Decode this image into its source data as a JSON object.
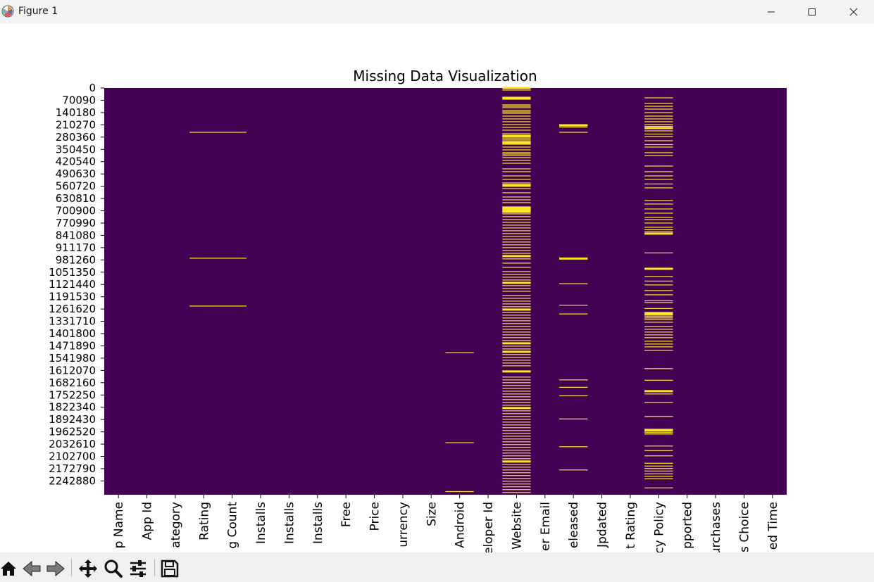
{
  "window": {
    "title": "Figure 1",
    "icons": [
      "matplotlib-logo-icon",
      "minimize-icon",
      "maximize-icon",
      "close-icon"
    ]
  },
  "toolbar": {
    "buttons": [
      "home-icon",
      "back-icon",
      "forward-icon",
      "pan-icon",
      "zoom-icon",
      "configure-subplots-icon",
      "save-icon"
    ]
  },
  "chart_data": {
    "type": "heatmap",
    "title": "Missing Data Visualization",
    "xlabel": "",
    "ylabel": "",
    "colormap": [
      "#440154",
      "#fde725"
    ],
    "x_tick_labels": [
      "p Name",
      "App Id",
      "ategory",
      "Rating",
      "g Count",
      "Installs",
      "Installs",
      "Installs",
      "Free",
      "Price",
      "urrency",
      "Size",
      "Android",
      "eloper Id",
      "Website",
      "er Email",
      "eleased",
      "Jpdated",
      "t Rating",
      "cy Policy",
      "pported",
      "urchases",
      "s Choice",
      "ed Time"
    ],
    "y_tick_labels": [
      "0",
      "70090",
      "140180",
      "210270",
      "280360",
      "350450",
      "420540",
      "490630",
      "560720",
      "630810",
      "700900",
      "770990",
      "841080",
      "911170",
      "981260",
      "1051350",
      "1121440",
      "1191530",
      "1261620",
      "1331710",
      "1401800",
      "1471890",
      "1541980",
      "1612070",
      "1682160",
      "1752250",
      "1822340",
      "1892430",
      "1962520",
      "2032610",
      "2102700",
      "2172790",
      "2242880"
    ],
    "row_range": [
      0,
      2312970
    ],
    "missing_rows": [
      {
        "column": 3,
        "rows": [
          252000,
          968000,
          1240000
        ]
      },
      {
        "column": 4,
        "rows": [
          252000,
          968000,
          1240000
        ]
      },
      {
        "column": 12,
        "rows": [
          1505000,
          2017000,
          2295000
        ]
      },
      {
        "column": 16,
        "rows": [
          212000,
          222000,
          252000,
          970000,
          1113000,
          1235000,
          1285000,
          1660000,
          1702000,
          1750000,
          1882000,
          2040000,
          2172000
        ]
      },
      {
        "column": 19,
        "rows": [
          56000,
          88000,
          104000,
          120000,
          140000,
          160000,
          176000,
          192000,
          208000,
          218000,
          228000,
          244000,
          262000,
          276000,
          300000,
          322000,
          336000,
          368000,
          384000,
          444000,
          476000,
          500000,
          520000,
          546000,
          568000,
          640000,
          660000,
          688000,
          712000,
          736000,
          748000,
          768000,
          792000,
          806000,
          818000,
          828000,
          938000,
          1028000,
          1072000,
          1098000,
          1120000,
          1152000,
          1176000,
          1210000,
          1220000,
          1254000,
          1276000,
          1284000,
          1292000,
          1300000,
          1308000,
          1316000,
          1332000,
          1356000,
          1372000,
          1388000,
          1404000,
          1420000,
          1440000,
          1456000,
          1472000,
          1492000,
          1596000,
          1662000,
          1724000,
          1740000,
          1788000,
          1868000,
          1944000,
          1952000,
          1960000,
          1968000,
          2036000,
          2062000,
          2092000,
          2134000,
          2150000,
          2164000,
          2178000,
          2194000,
          2208000,
          2222000,
          2274000
        ]
      },
      {
        "column": 14,
        "rows": [
          0,
          12000,
          56000,
          64000,
          96000,
          104000,
          112000,
          128000,
          136000,
          144000,
          160000,
          176000,
          192000,
          208000,
          224000,
          240000,
          260000,
          272000,
          280000,
          288000,
          296000,
          304000,
          312000,
          320000,
          336000,
          352000,
          368000,
          376000,
          384000,
          396000,
          412000,
          428000,
          460000,
          476000,
          500000,
          520000,
          540000,
          548000,
          556000,
          572000,
          596000,
          620000,
          636000,
          652000,
          676000,
          684000,
          692000,
          700000,
          708000,
          716000,
          732000,
          748000,
          764000,
          780000,
          796000,
          812000,
          828000,
          844000,
          860000,
          876000,
          892000,
          908000,
          924000,
          940000,
          956000,
          972000,
          996000,
          1020000,
          1044000,
          1060000,
          1076000,
          1092000,
          1108000,
          1124000,
          1140000,
          1156000,
          1180000,
          1196000,
          1212000,
          1228000,
          1244000,
          1260000,
          1276000,
          1292000,
          1308000,
          1324000,
          1340000,
          1356000,
          1372000,
          1388000,
          1404000,
          1420000,
          1436000,
          1452000,
          1468000,
          1484000,
          1500000,
          1516000,
          1532000,
          1548000,
          1564000,
          1580000,
          1612000,
          1644000,
          1660000,
          1676000,
          1692000,
          1708000,
          1724000,
          1740000,
          1756000,
          1772000,
          1788000,
          1804000,
          1820000,
          1836000,
          1852000,
          1868000,
          1884000,
          1900000,
          1916000,
          1932000,
          1948000,
          1964000,
          1980000,
          1996000,
          2012000,
          2028000,
          2044000,
          2060000,
          2076000,
          2092000,
          2108000,
          2124000,
          2140000,
          2156000,
          2172000,
          2188000,
          2204000,
          2220000,
          2236000,
          2252000,
          2268000,
          2284000,
          2300000
        ]
      }
    ],
    "bold_rows": [
      {
        "column": 14,
        "rows": [
          0,
          56000,
          272000,
          312000,
          556000,
          684000,
          700000,
          956000,
          1108000,
          1260000,
          1452000,
          1500000,
          1612000,
          1820000,
          2124000
        ]
      },
      {
        "column": 16,
        "rows": [
          212000,
          970000
        ]
      },
      {
        "column": 19,
        "rows": [
          228000,
          828000,
          1028000,
          1284000,
          1724000,
          1944000
        ]
      }
    ]
  }
}
